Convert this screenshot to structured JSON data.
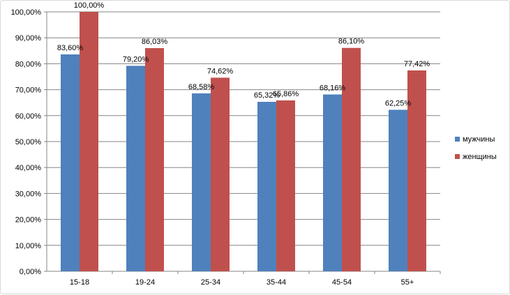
{
  "chart_data": {
    "type": "bar",
    "categories": [
      "15-18",
      "19-24",
      "25-34",
      "35-44",
      "45-54",
      "55+"
    ],
    "series": [
      {
        "name": "мужчины",
        "color": "#4f81bd",
        "values": [
          83.6,
          79.2,
          68.58,
          65.32,
          68.16,
          62.25
        ],
        "labels": [
          "83,60%",
          "79,20%",
          "68,58%",
          "65,32%",
          "68,16%",
          "62,25%"
        ]
      },
      {
        "name": "женщины",
        "color": "#c0504d",
        "values": [
          100.0,
          86.03,
          74.62,
          65.86,
          86.1,
          77.42
        ],
        "labels": [
          "100,00%",
          "86,03%",
          "74,62%",
          "65,86%",
          "86,10%",
          "77,42%"
        ]
      }
    ],
    "y_ticks": [
      "0,00%",
      "10,00%",
      "20,00%",
      "30,00%",
      "40,00%",
      "50,00%",
      "60,00%",
      "70,00%",
      "80,00%",
      "90,00%",
      "100,00%"
    ],
    "ylim": [
      0,
      100
    ],
    "grid": true,
    "legend_position": "right"
  }
}
